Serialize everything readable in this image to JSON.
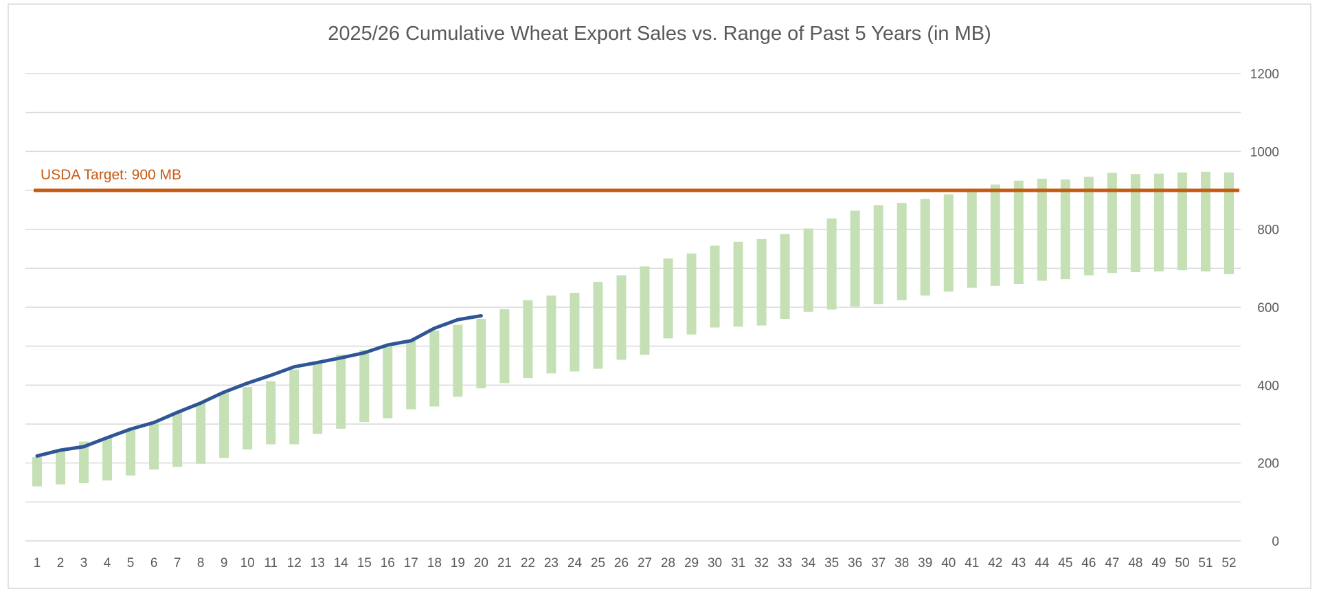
{
  "chart_data": {
    "type": "bar",
    "title": "2025/26 Cumulative Wheat Export Sales vs. Range of Past 5 Years (in MB)",
    "xlabel": "",
    "ylabel": "",
    "ylim": [
      0,
      1200
    ],
    "yticks": [
      0,
      200,
      400,
      600,
      800,
      1000,
      1200
    ],
    "y_axis_position": "right",
    "grid": true,
    "categories": [
      1,
      2,
      3,
      4,
      5,
      6,
      7,
      8,
      9,
      10,
      11,
      12,
      13,
      14,
      15,
      16,
      17,
      18,
      19,
      20,
      21,
      22,
      23,
      24,
      25,
      26,
      27,
      28,
      29,
      30,
      31,
      32,
      33,
      34,
      35,
      36,
      37,
      38,
      39,
      40,
      41,
      42,
      43,
      44,
      45,
      46,
      47,
      48,
      49,
      50,
      51,
      52
    ],
    "range_series": {
      "name": "Range of Past 5 Years",
      "color": "#C5E0B4",
      "low": [
        140,
        145,
        148,
        155,
        168,
        183,
        190,
        198,
        213,
        235,
        248,
        248,
        275,
        288,
        305,
        315,
        338,
        345,
        370,
        392,
        405,
        418,
        430,
        435,
        442,
        465,
        478,
        520,
        530,
        548,
        550,
        553,
        570,
        588,
        594,
        602,
        608,
        618,
        630,
        640,
        650,
        655,
        660,
        668,
        672,
        682,
        688,
        690,
        692,
        695,
        692,
        685
      ],
      "high": [
        215,
        230,
        255,
        265,
        285,
        300,
        330,
        355,
        380,
        395,
        410,
        440,
        455,
        478,
        490,
        500,
        515,
        540,
        555,
        570,
        595,
        618,
        630,
        637,
        665,
        682,
        705,
        725,
        738,
        758,
        768,
        775,
        788,
        802,
        828,
        848,
        862,
        868,
        878,
        890,
        900,
        915,
        925,
        930,
        928,
        935,
        945,
        942,
        943,
        946,
        948,
        946
      ]
    },
    "line_series": {
      "name": "2025/26 Cumulative Sales",
      "color": "#2F5597",
      "values": [
        218,
        233,
        242,
        265,
        287,
        304,
        330,
        354,
        382,
        405,
        425,
        447,
        458,
        470,
        483,
        503,
        514,
        546,
        568,
        578
      ]
    },
    "target": {
      "label": "USDA Target: 900 MB",
      "value": 900,
      "color": "#C55A11"
    }
  }
}
